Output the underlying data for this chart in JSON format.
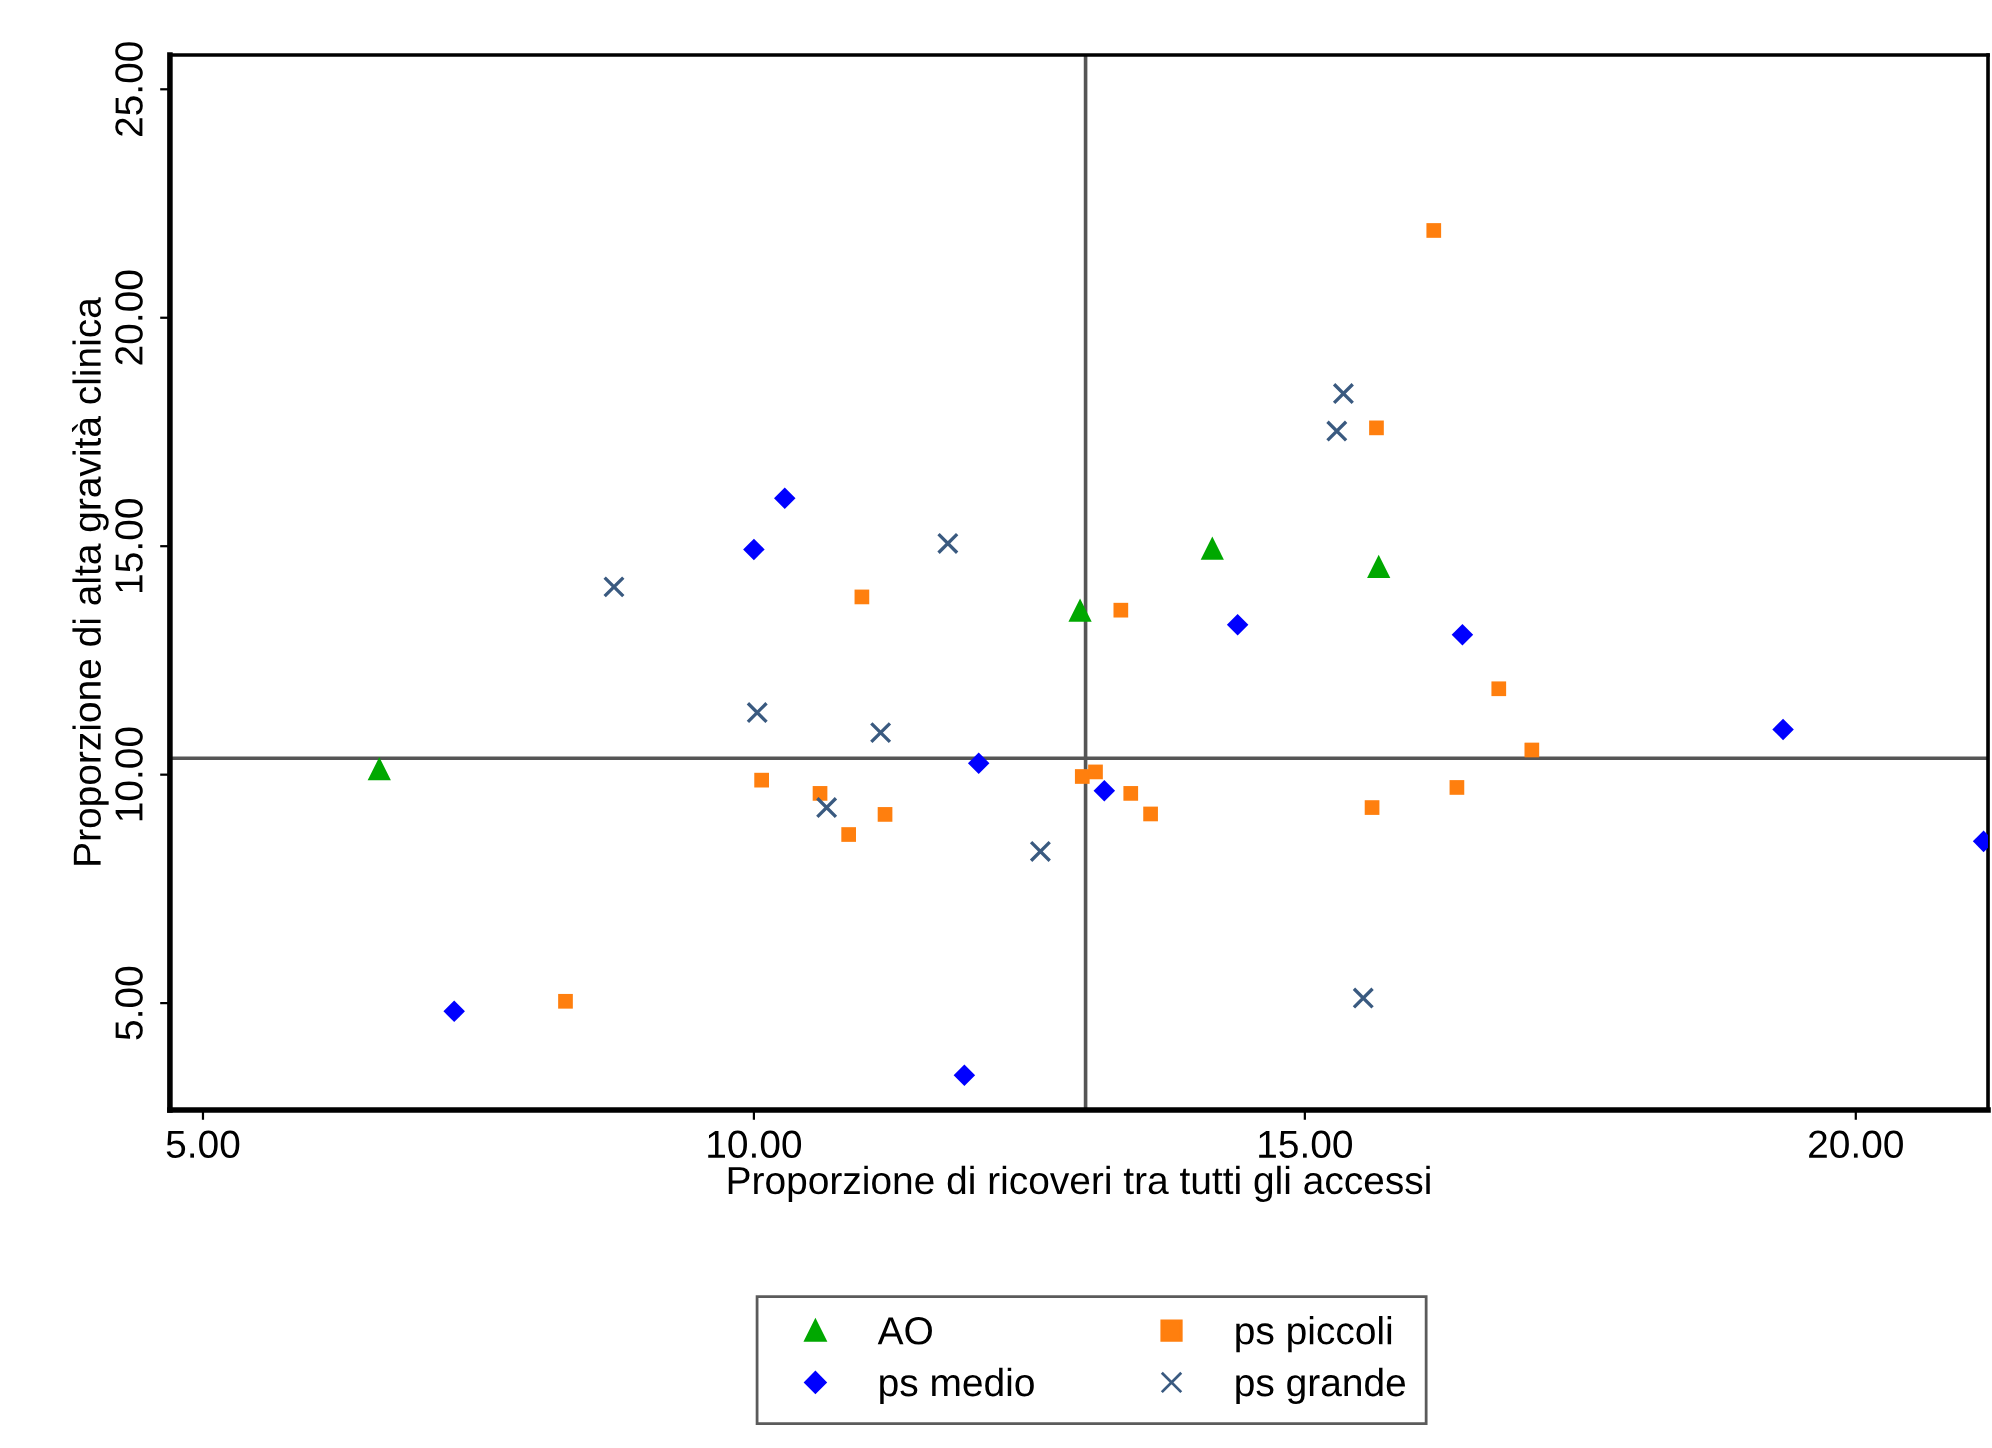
{
  "chart_data": {
    "type": "scatter",
    "xlabel": "Proporzione di ricoveri tra tutti gli accessi",
    "ylabel": "Proporzione di alta gravità clinica",
    "xlim": [
      4.7,
      21.2
    ],
    "ylim": [
      2.66,
      25.75
    ],
    "xticks": [
      {
        "value": 5,
        "label": "5.00"
      },
      {
        "value": 10,
        "label": "10.00"
      },
      {
        "value": 15,
        "label": "15.00"
      },
      {
        "value": 20,
        "label": "20.00"
      }
    ],
    "yticks": [
      {
        "value": 5,
        "label": "5.00"
      },
      {
        "value": 10,
        "label": "10.00"
      },
      {
        "value": 15,
        "label": "15.00"
      },
      {
        "value": 20,
        "label": "20.00"
      },
      {
        "value": 25,
        "label": "25.00"
      }
    ],
    "grid": false,
    "legend": "bottom",
    "ref_lines": [
      {
        "axis": "x",
        "value": 13.01,
        "color": "#555555"
      },
      {
        "axis": "y",
        "value": 10.36,
        "color": "#555555"
      }
    ],
    "series": [
      {
        "name": "AO",
        "color": "#00a800",
        "marker": "triangle",
        "x": [
          6.6,
          12.96,
          14.16,
          15.67
        ],
        "values": [
          10.13,
          13.6,
          14.96,
          14.56
        ]
      },
      {
        "name": "ps medio",
        "color": "#0000ff",
        "marker": "diamond",
        "x": [
          7.28,
          10.0,
          10.28,
          12.04,
          11.91,
          13.18,
          14.39,
          16.43,
          19.34,
          21.16
        ],
        "values": [
          4.82,
          14.93,
          16.05,
          10.25,
          3.42,
          9.65,
          13.28,
          13.06,
          10.99,
          8.54
        ]
      },
      {
        "name": "ps piccoli",
        "color": "#ff7f0e",
        "marker": "square",
        "x": [
          8.29,
          10.98,
          10.07,
          10.6,
          10.86,
          11.19,
          12.98,
          13.1,
          13.33,
          13.42,
          13.6,
          15.61,
          16.38,
          16.76,
          17.06,
          16.17,
          15.65
        ],
        "values": [
          5.04,
          13.89,
          9.88,
          9.59,
          8.69,
          9.13,
          9.96,
          10.06,
          13.6,
          9.59,
          9.14,
          9.28,
          9.72,
          11.88,
          10.54,
          21.91,
          17.59
        ]
      },
      {
        "name": "ps grande",
        "color": "#3a5a80",
        "marker": "cross",
        "x": [
          8.73,
          10.03,
          11.15,
          10.66,
          11.76,
          12.6,
          15.53,
          15.35,
          15.29
        ],
        "values": [
          14.11,
          11.36,
          10.92,
          9.28,
          15.06,
          8.32,
          5.11,
          18.34,
          17.52
        ]
      }
    ]
  }
}
